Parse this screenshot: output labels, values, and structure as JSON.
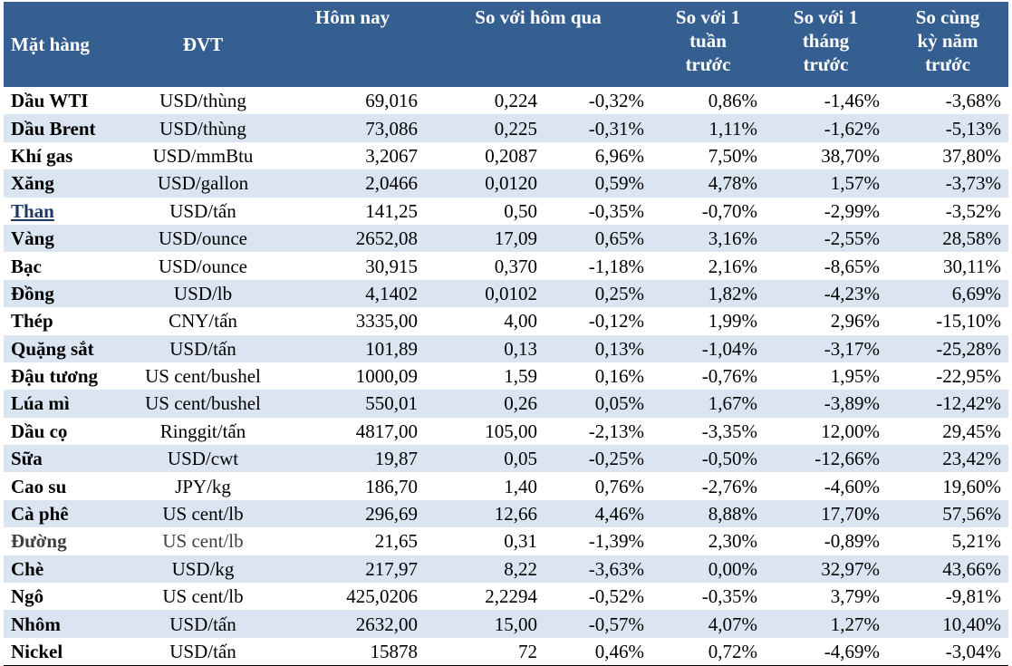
{
  "headers": {
    "item": "Mặt hàng",
    "unit": "ĐVT",
    "today": "Hôm nay",
    "vs_yesterday": "So với hôm qua",
    "vs_week_1": "So với 1",
    "vs_week_2": "tuần",
    "vs_week_3": "trước",
    "vs_month_1": "So với 1",
    "vs_month_2": "tháng",
    "vs_month_3": "trước",
    "vs_year_1": "So cùng",
    "vs_year_2": "kỳ năm",
    "vs_year_3": "trước"
  },
  "rows": [
    {
      "item": "Dầu WTI",
      "unit": "USD/thùng",
      "today": "69,016",
      "chg": "0,224",
      "chg_pct": "-0,32%",
      "week": "0,86%",
      "month": "-1,46%",
      "year": "-3,68%"
    },
    {
      "item": "Dầu Brent",
      "unit": "USD/thùng",
      "today": "73,086",
      "chg": "0,225",
      "chg_pct": "-0,31%",
      "week": "1,11%",
      "month": "-1,62%",
      "year": "-5,13%"
    },
    {
      "item": "Khí gas",
      "unit": "USD/mmBtu",
      "today": "3,2067",
      "chg": "0,2087",
      "chg_pct": "6,96%",
      "week": "7,50%",
      "month": "38,70%",
      "year": "37,80%"
    },
    {
      "item": "Xăng",
      "unit": "USD/gallon",
      "today": "2,0466",
      "chg": "0,0120",
      "chg_pct": "0,59%",
      "week": "4,78%",
      "month": "1,57%",
      "year": "-3,73%"
    },
    {
      "item": "Than",
      "unit": "USD/tấn",
      "today": "141,25",
      "chg": "0,50",
      "chg_pct": "-0,35%",
      "week": "-0,70%",
      "month": "-2,99%",
      "year": "-3,52%"
    },
    {
      "item": "Vàng",
      "unit": "USD/ounce",
      "today": "2652,08",
      "chg": "17,09",
      "chg_pct": "0,65%",
      "week": "3,16%",
      "month": "-2,55%",
      "year": "28,58%"
    },
    {
      "item": "Bạc",
      "unit": "USD/ounce",
      "today": "30,915",
      "chg": "0,370",
      "chg_pct": "-1,18%",
      "week": "2,16%",
      "month": "-8,65%",
      "year": "30,11%"
    },
    {
      "item": "Đồng",
      "unit": "USD/lb",
      "today": "4,1402",
      "chg": "0,0102",
      "chg_pct": "0,25%",
      "week": "1,82%",
      "month": "-4,23%",
      "year": "6,69%"
    },
    {
      "item": "Thép",
      "unit": "CNY/tấn",
      "today": "3335,00",
      "chg": "4,00",
      "chg_pct": "-0,12%",
      "week": "1,99%",
      "month": "2,96%",
      "year": "-15,10%"
    },
    {
      "item": "Quặng sắt",
      "unit": "USD/tấn",
      "today": "101,89",
      "chg": "0,13",
      "chg_pct": "0,13%",
      "week": "-1,04%",
      "month": "-3,17%",
      "year": "-25,28%"
    },
    {
      "item": "Đậu tương",
      "unit": "US cent/bushel",
      "today": "1000,09",
      "chg": "1,59",
      "chg_pct": "0,16%",
      "week": "-0,76%",
      "month": "1,95%",
      "year": "-22,95%"
    },
    {
      "item": "Lúa mì",
      "unit": "US cent/bushel",
      "today": "550,01",
      "chg": "0,26",
      "chg_pct": "0,05%",
      "week": "1,67%",
      "month": "-3,89%",
      "year": "-12,42%"
    },
    {
      "item": "Dầu cọ",
      "unit": "Ringgit/tấn",
      "today": "4817,00",
      "chg": "105,00",
      "chg_pct": "-2,13%",
      "week": "-3,35%",
      "month": "12,00%",
      "year": "29,45%"
    },
    {
      "item": "Sữa",
      "unit": "USD/cwt",
      "today": "19,87",
      "chg": "0,05",
      "chg_pct": "-0,25%",
      "week": "-0,50%",
      "month": "-12,66%",
      "year": "23,42%"
    },
    {
      "item": "Cao su",
      "unit": "JPY/kg",
      "today": "186,70",
      "chg": "1,40",
      "chg_pct": "0,76%",
      "week": "-2,76%",
      "month": "-4,60%",
      "year": "19,60%"
    },
    {
      "item": "Cà phê",
      "unit": "US cent/lb",
      "today": "296,69",
      "chg": "12,66",
      "chg_pct": "4,46%",
      "week": "8,88%",
      "month": "17,70%",
      "year": "57,56%"
    },
    {
      "item": "Đường",
      "unit": "US cent/lb",
      "today": "21,65",
      "chg": "0,31",
      "chg_pct": "-1,39%",
      "week": "2,30%",
      "month": "-0,89%",
      "year": "5,21%"
    },
    {
      "item": "Chè",
      "unit": "USD/kg",
      "today": "217,97",
      "chg": "8,22",
      "chg_pct": "-3,63%",
      "week": "0,00%",
      "month": "32,97%",
      "year": "43,66%"
    },
    {
      "item": "Ngô",
      "unit": "US cent/lb",
      "today": "425,0206",
      "chg": "2,2294",
      "chg_pct": "-0,52%",
      "week": "-0,35%",
      "month": "3,79%",
      "year": "-9,81%"
    },
    {
      "item": "Nhôm",
      "unit": "USD/tấn",
      "today": "2632,00",
      "chg": "15,00",
      "chg_pct": "-0,57%",
      "week": "4,07%",
      "month": "1,27%",
      "year": "10,40%"
    },
    {
      "item": "Nickel",
      "unit": "USD/tấn",
      "today": "15878",
      "chg": "72",
      "chg_pct": "0,46%",
      "week": "0,72%",
      "month": "-4,69%",
      "year": "-3,04%"
    }
  ],
  "colors": {
    "header_bg": "#365f91",
    "header_text": "#ffffff",
    "row_alt_bg": "#dbe5f1",
    "link_text": "#1f3864"
  }
}
